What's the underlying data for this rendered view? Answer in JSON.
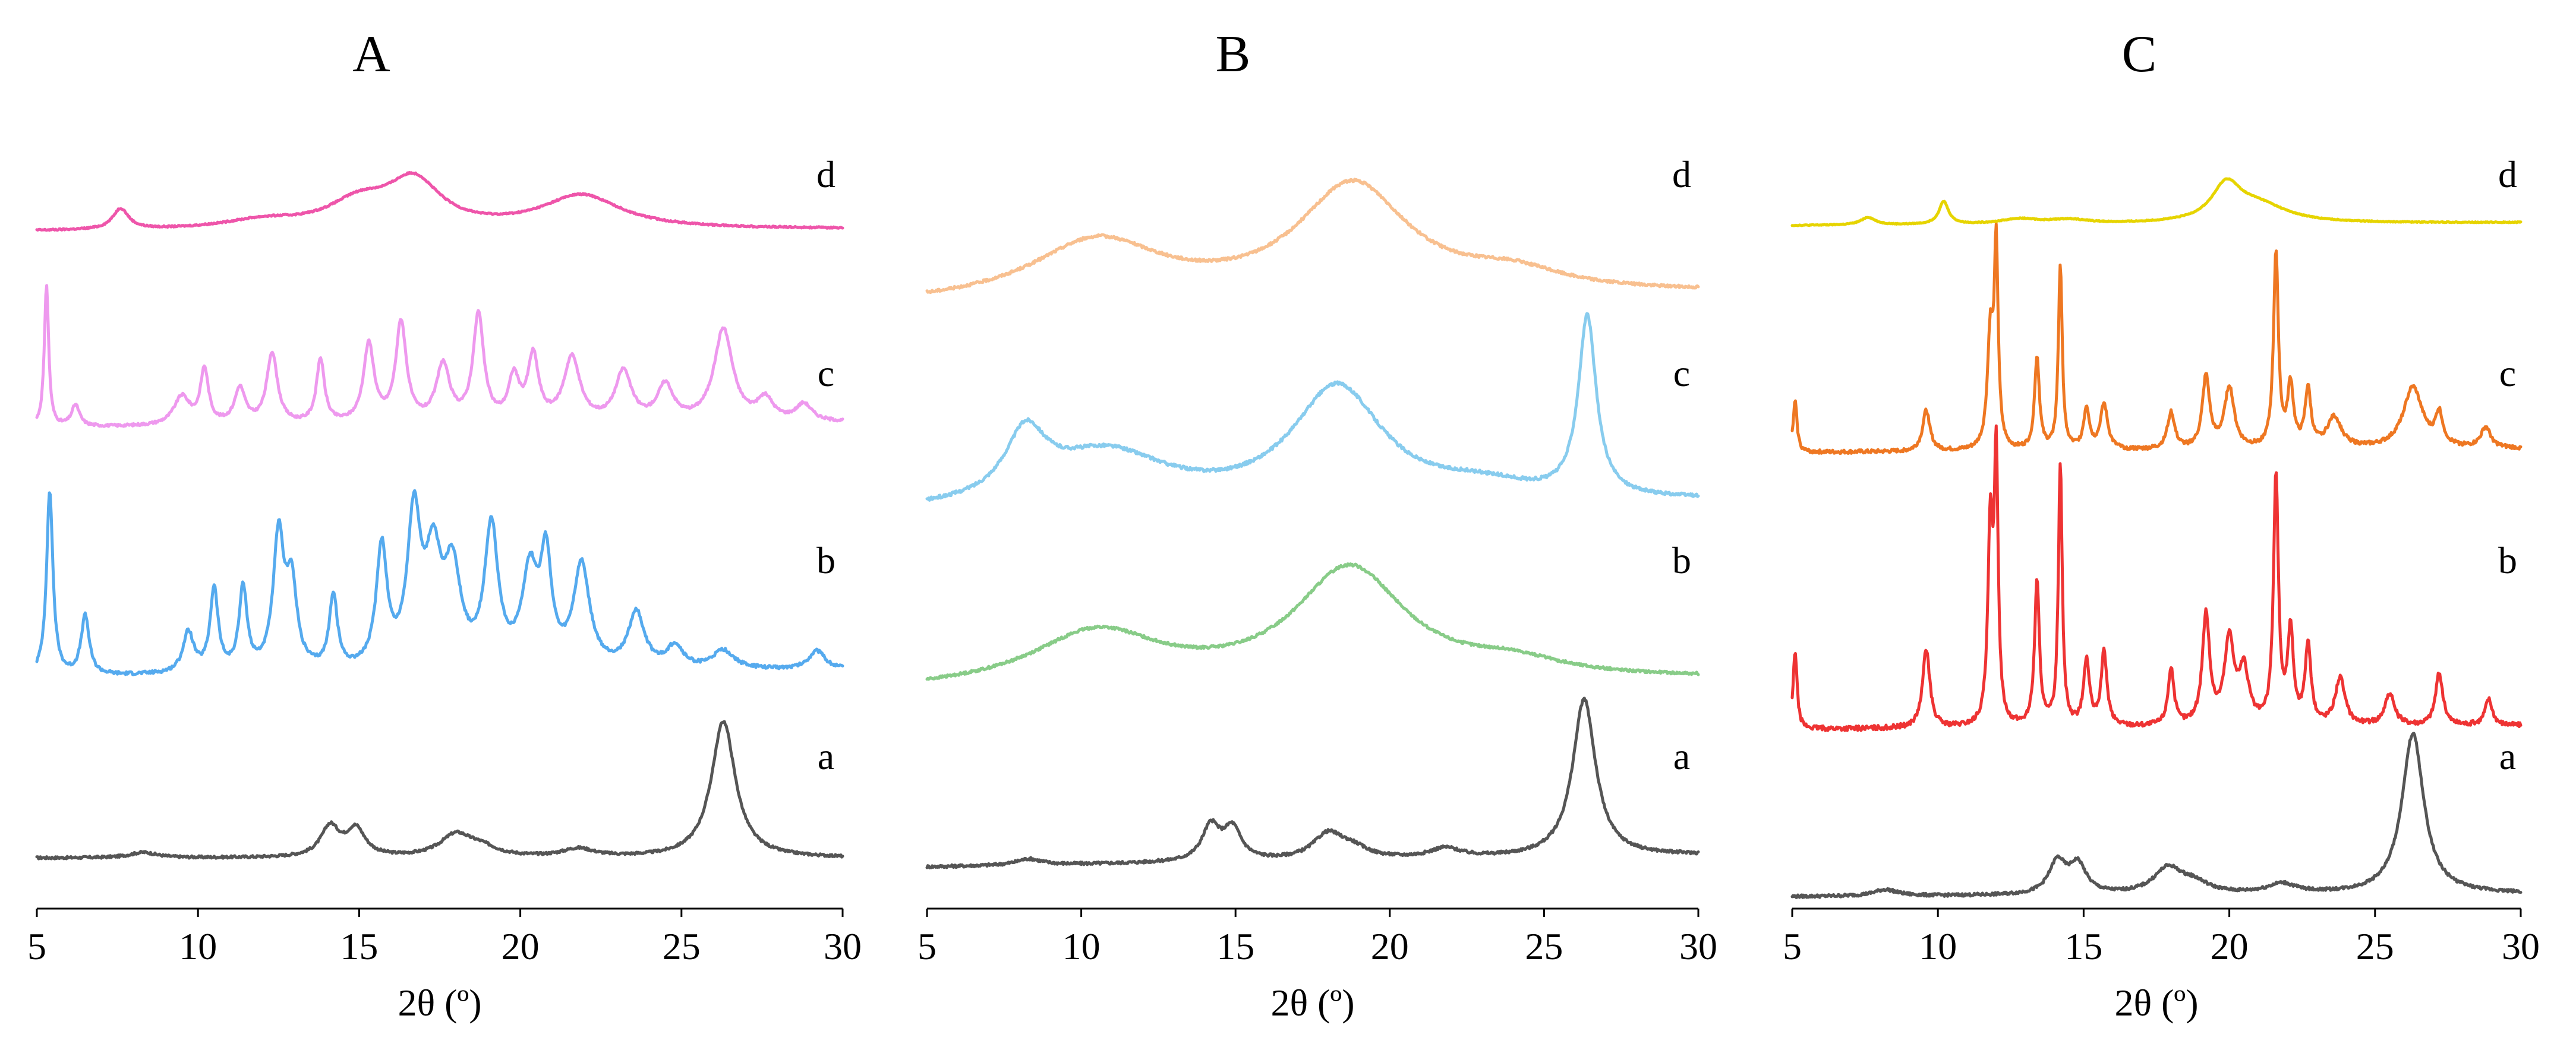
{
  "chart_data": [
    {
      "type": "line",
      "title": "A",
      "xlabel": "2θ (º)",
      "ylabel": "",
      "xlim": [
        5,
        30
      ],
      "xticks": [
        5,
        10,
        15,
        20,
        25,
        30
      ],
      "grid": false,
      "series": [
        {
          "name": "a",
          "color": "#555555",
          "peaks": [
            [
              8.3,
              0.04,
              0.5
            ],
            [
              14.1,
              0.22,
              0.35
            ],
            [
              14.9,
              0.2,
              0.35
            ],
            [
              18.0,
              0.16,
              0.6
            ],
            [
              18.8,
              0.06,
              0.6
            ],
            [
              21.8,
              0.06,
              0.6
            ],
            [
              26.3,
              1.0,
              0.45
            ]
          ]
        },
        {
          "name": "b",
          "color": "#55aaee",
          "peaks": [
            [
              5.4,
              1.0,
              0.12
            ],
            [
              6.5,
              0.32,
              0.15
            ],
            [
              9.7,
              0.22,
              0.2
            ],
            [
              10.5,
              0.45,
              0.15
            ],
            [
              11.4,
              0.45,
              0.15
            ],
            [
              12.5,
              0.72,
              0.2
            ],
            [
              12.9,
              0.45,
              0.2
            ],
            [
              14.2,
              0.4,
              0.15
            ],
            [
              15.7,
              0.65,
              0.2
            ],
            [
              16.7,
              0.8,
              0.25
            ],
            [
              17.3,
              0.55,
              0.3
            ],
            [
              17.9,
              0.5,
              0.3
            ],
            [
              19.1,
              0.75,
              0.25
            ],
            [
              20.3,
              0.5,
              0.3
            ],
            [
              20.8,
              0.55,
              0.2
            ],
            [
              21.9,
              0.55,
              0.3
            ],
            [
              23.6,
              0.3,
              0.3
            ],
            [
              24.8,
              0.12,
              0.3
            ],
            [
              26.3,
              0.1,
              0.4
            ],
            [
              29.2,
              0.1,
              0.3
            ]
          ]
        },
        {
          "name": "c",
          "color": "#ee99ee",
          "peaks": [
            [
              5.3,
              1.0,
              0.08
            ],
            [
              6.2,
              0.15,
              0.15
            ],
            [
              9.5,
              0.2,
              0.3
            ],
            [
              10.2,
              0.38,
              0.15
            ],
            [
              11.3,
              0.25,
              0.2
            ],
            [
              12.3,
              0.5,
              0.2
            ],
            [
              13.8,
              0.45,
              0.15
            ],
            [
              15.3,
              0.55,
              0.2
            ],
            [
              16.3,
              0.7,
              0.2
            ],
            [
              17.6,
              0.4,
              0.25
            ],
            [
              18.7,
              0.75,
              0.2
            ],
            [
              19.8,
              0.3,
              0.2
            ],
            [
              20.4,
              0.45,
              0.2
            ],
            [
              21.6,
              0.45,
              0.3
            ],
            [
              23.2,
              0.35,
              0.3
            ],
            [
              24.5,
              0.25,
              0.3
            ],
            [
              26.3,
              0.65,
              0.35
            ],
            [
              27.6,
              0.15,
              0.3
            ],
            [
              28.8,
              0.12,
              0.3
            ]
          ]
        },
        {
          "name": "d",
          "color": "#ee55aa",
          "peaks": [
            [
              7.6,
              0.25,
              0.3
            ],
            [
              15.0,
              0.3,
              1.2
            ],
            [
              16.7,
              0.55,
              1.0
            ],
            [
              21.9,
              0.4,
              1.5
            ],
            [
              12.0,
              0.1,
              1.5
            ]
          ]
        }
      ]
    },
    {
      "type": "line",
      "title": "B",
      "xlabel": "2θ (º)",
      "ylabel": "",
      "xlim": [
        5,
        30
      ],
      "xticks": [
        5,
        10,
        15,
        20,
        25,
        30
      ],
      "grid": false,
      "series": [
        {
          "name": "a",
          "color": "#555555",
          "peaks": [
            [
              8.3,
              0.04,
              0.5
            ],
            [
              14.2,
              0.22,
              0.35
            ],
            [
              14.9,
              0.2,
              0.35
            ],
            [
              18.0,
              0.16,
              0.6
            ],
            [
              18.8,
              0.06,
              0.6
            ],
            [
              21.8,
              0.06,
              0.6
            ],
            [
              26.3,
              1.0,
              0.45
            ]
          ]
        },
        {
          "name": "b",
          "color": "#88cc88",
          "peaks": [
            [
              10.5,
              0.38,
              2.6
            ],
            [
              18.7,
              0.8,
              2.2
            ],
            [
              24.0,
              0.1,
              2.0
            ]
          ]
        },
        {
          "name": "c",
          "color": "#88ccee",
          "peaks": [
            [
              8.2,
              0.35,
              0.8
            ],
            [
              10.8,
              0.3,
              2.5
            ],
            [
              18.3,
              0.65,
              1.8
            ],
            [
              23.0,
              0.08,
              2.0
            ],
            [
              26.4,
              1.0,
              0.35
            ]
          ]
        },
        {
          "name": "d",
          "color": "#f8c090",
          "peaks": [
            [
              10.5,
              0.4,
              2.6
            ],
            [
              18.8,
              0.75,
              2.2
            ],
            [
              24.0,
              0.12,
              2.0
            ]
          ]
        }
      ]
    },
    {
      "type": "line",
      "title": "C",
      "xlabel": "2θ (º)",
      "ylabel": "",
      "xlim": [
        5,
        30
      ],
      "xticks": [
        5,
        10,
        15,
        20,
        25,
        30
      ],
      "grid": false,
      "series": [
        {
          "name": "a",
          "color": "#555555",
          "peaks": [
            [
              8.2,
              0.04,
              0.5
            ],
            [
              14.1,
              0.2,
              0.35
            ],
            [
              14.8,
              0.18,
              0.35
            ],
            [
              17.9,
              0.16,
              0.6
            ],
            [
              18.8,
              0.06,
              0.6
            ],
            [
              21.8,
              0.06,
              0.6
            ],
            [
              26.3,
              1.0,
              0.45
            ]
          ]
        },
        {
          "name": "b",
          "color": "#ee3333",
          "peaks": [
            [
              5.1,
              0.3,
              0.08
            ],
            [
              9.6,
              0.3,
              0.15
            ],
            [
              11.8,
              0.75,
              0.1
            ],
            [
              12.0,
              1.0,
              0.08
            ],
            [
              13.4,
              0.55,
              0.1
            ],
            [
              14.2,
              1.0,
              0.08
            ],
            [
              15.1,
              0.25,
              0.12
            ],
            [
              15.7,
              0.28,
              0.12
            ],
            [
              18.0,
              0.22,
              0.12
            ],
            [
              19.2,
              0.42,
              0.15
            ],
            [
              20.0,
              0.32,
              0.2
            ],
            [
              20.5,
              0.2,
              0.2
            ],
            [
              21.6,
              0.95,
              0.1
            ],
            [
              22.1,
              0.35,
              0.12
            ],
            [
              22.7,
              0.3,
              0.12
            ],
            [
              23.8,
              0.18,
              0.2
            ],
            [
              25.5,
              0.12,
              0.2
            ],
            [
              27.2,
              0.2,
              0.15
            ],
            [
              28.9,
              0.1,
              0.15
            ]
          ]
        },
        {
          "name": "c",
          "color": "#ee7722",
          "peaks": [
            [
              5.1,
              0.25,
              0.08
            ],
            [
              9.6,
              0.2,
              0.15
            ],
            [
              11.8,
              0.55,
              0.12
            ],
            [
              12.0,
              0.95,
              0.08
            ],
            [
              13.4,
              0.45,
              0.1
            ],
            [
              14.2,
              0.9,
              0.08
            ],
            [
              15.1,
              0.2,
              0.12
            ],
            [
              15.7,
              0.22,
              0.15
            ],
            [
              18.0,
              0.18,
              0.15
            ],
            [
              19.2,
              0.35,
              0.15
            ],
            [
              20.0,
              0.3,
              0.2
            ],
            [
              21.6,
              0.95,
              0.1
            ],
            [
              22.1,
              0.3,
              0.12
            ],
            [
              22.7,
              0.28,
              0.12
            ],
            [
              23.6,
              0.15,
              0.3
            ],
            [
              26.3,
              0.3,
              0.4
            ],
            [
              27.2,
              0.15,
              0.15
            ],
            [
              28.8,
              0.1,
              0.2
            ]
          ]
        },
        {
          "name": "d",
          "color": "#e6d400",
          "peaks": [
            [
              7.6,
              0.15,
              0.3
            ],
            [
              10.2,
              0.45,
              0.2
            ],
            [
              12.8,
              0.1,
              0.8
            ],
            [
              14.5,
              0.08,
              0.8
            ],
            [
              19.9,
              0.7,
              0.6
            ],
            [
              21.0,
              0.35,
              1.2
            ]
          ]
        }
      ]
    }
  ]
}
